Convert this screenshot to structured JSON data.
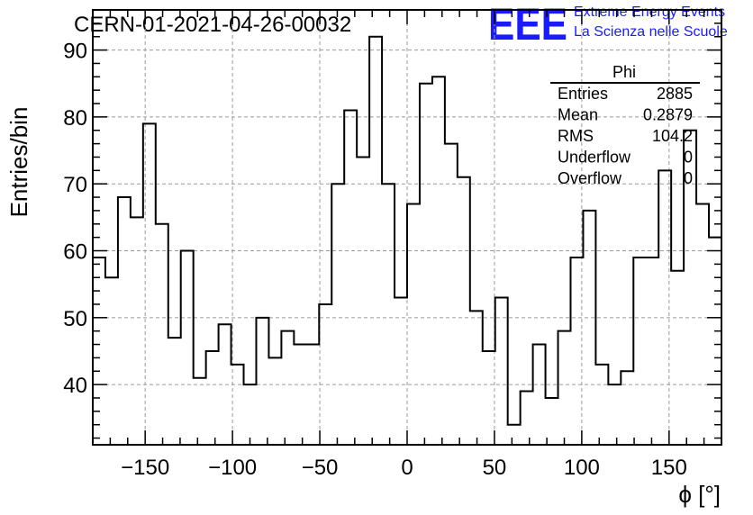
{
  "chart_data": {
    "type": "histogram",
    "title": "CERN-01-2021-04-26-00032",
    "xlabel": "ϕ [°]",
    "ylabel": "Entries/bin",
    "xlim": [
      -180,
      180
    ],
    "ylim": [
      31,
      96
    ],
    "grid": true,
    "bin_width": 7.2,
    "x_ticks": [
      -150,
      -100,
      -50,
      0,
      50,
      100,
      150
    ],
    "x_tick_labels": [
      "−150",
      "−100",
      "−50",
      "0",
      "50",
      "100",
      "150"
    ],
    "y_ticks": [
      40,
      50,
      60,
      70,
      80,
      90
    ],
    "y_tick_labels": [
      "40",
      "50",
      "60",
      "70",
      "80",
      "90"
    ],
    "values": [
      59,
      56,
      68,
      65,
      79,
      64,
      47,
      60,
      41,
      45,
      49,
      43,
      40,
      50,
      44,
      48,
      46,
      46,
      52,
      70,
      81,
      74,
      92,
      70,
      53,
      67,
      85,
      86,
      76,
      71,
      51,
      45,
      53,
      34,
      39,
      46,
      38,
      48,
      59,
      66,
      43,
      40,
      42,
      59,
      59,
      72,
      57,
      78,
      67,
      62
    ],
    "stats_box": {
      "name": "Phi",
      "rows": [
        {
          "label": "Entries",
          "value": "2885"
        },
        {
          "label": "Mean",
          "value": "0.2879"
        },
        {
          "label": "RMS",
          "value": "104.2"
        },
        {
          "label": "Underflow",
          "value": "0"
        },
        {
          "label": "Overflow",
          "value": "0"
        }
      ]
    },
    "line_color": "#000000"
  },
  "logo": {
    "mark": "EEE",
    "line1": "Extreme Energy Events",
    "line2": "La Scienza nelle Scuole",
    "color": "#1a1aff"
  }
}
